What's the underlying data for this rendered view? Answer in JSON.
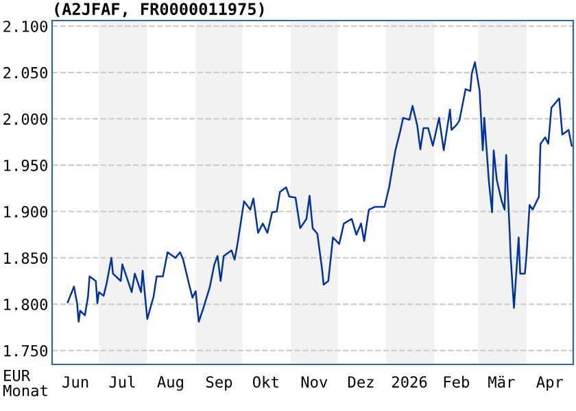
{
  "chart_data": {
    "type": "line",
    "title": "(A2JFAF, FR0000011975)",
    "xlabel": "Monat",
    "ylabel": "EUR",
    "x": [
      "2025-06-11",
      "2025-06-15",
      "2025-06-17",
      "2025-06-18",
      "2025-06-19",
      "2025-06-22",
      "2025-06-24",
      "2025-06-25",
      "2025-06-29",
      "2025-06-30",
      "2025-07-01",
      "2025-07-04",
      "2025-07-06",
      "2025-07-09",
      "2025-07-10",
      "2025-07-15",
      "2025-07-16",
      "2025-07-19",
      "2025-07-22",
      "2025-07-24",
      "2025-07-28",
      "2025-07-29",
      "2025-08-01",
      "2025-08-05",
      "2025-08-07",
      "2025-08-11",
      "2025-08-14",
      "2025-08-19",
      "2025-08-22",
      "2025-08-24",
      "2025-08-28",
      "2025-08-30",
      "2025-09-01",
      "2025-09-03",
      "2025-09-06",
      "2025-09-10",
      "2025-09-13",
      "2025-09-15",
      "2025-09-17",
      "2025-09-19",
      "2025-09-24",
      "2025-09-26",
      "2025-09-28",
      "2025-10-02",
      "2025-10-06",
      "2025-10-08",
      "2025-10-11",
      "2025-10-14",
      "2025-10-17",
      "2025-10-20",
      "2025-10-23",
      "2025-10-25",
      "2025-10-29",
      "2025-10-31",
      "2025-11-04",
      "2025-11-07",
      "2025-11-11",
      "2025-11-13",
      "2025-11-15",
      "2025-11-18",
      "2025-11-21",
      "2025-11-22",
      "2025-11-25",
      "2025-11-28",
      "2025-12-02",
      "2025-12-05",
      "2025-12-10",
      "2025-12-13",
      "2025-12-16",
      "2025-12-18",
      "2025-12-21",
      "2025-12-25",
      "2025-12-31",
      "2026-01-03",
      "2026-01-07",
      "2026-01-10",
      "2026-01-12",
      "2026-01-16",
      "2026-01-18",
      "2026-01-21",
      "2026-01-23",
      "2026-01-25",
      "2026-01-28",
      "2026-01-31",
      "2026-02-04",
      "2026-02-07",
      "2026-02-11",
      "2026-02-12",
      "2026-02-15",
      "2026-02-17",
      "2026-02-21",
      "2026-02-24",
      "2026-02-25",
      "2026-02-27",
      "2026-03-02",
      "2026-03-04",
      "2026-03-05",
      "2026-03-08",
      "2026-03-10",
      "2026-03-11",
      "2026-03-13",
      "2026-03-16",
      "2026-03-18",
      "2026-03-19",
      "2026-03-21",
      "2026-03-22",
      "2026-03-24",
      "2026-03-27",
      "2026-03-28",
      "2026-03-31",
      "2026-04-01",
      "2026-04-03",
      "2026-04-05",
      "2026-04-09",
      "2026-04-10",
      "2026-04-13",
      "2026-04-15",
      "2026-04-17",
      "2026-04-22",
      "2026-04-24",
      "2026-04-28",
      "2026-04-30"
    ],
    "series": [
      {
        "color": "#0033a0",
        "values": [
          1.802,
          1.819,
          1.801,
          1.781,
          1.793,
          1.788,
          1.808,
          1.83,
          1.825,
          1.801,
          1.813,
          1.809,
          1.823,
          1.85,
          1.833,
          1.825,
          1.843,
          1.828,
          1.813,
          1.833,
          1.813,
          1.836,
          1.784,
          1.808,
          1.83,
          1.83,
          1.856,
          1.85,
          1.856,
          1.848,
          1.82,
          1.807,
          1.814,
          1.781,
          1.796,
          1.818,
          1.843,
          1.852,
          1.825,
          1.852,
          1.858,
          1.848,
          1.867,
          1.911,
          1.902,
          1.914,
          1.877,
          1.887,
          1.877,
          1.899,
          1.9,
          1.921,
          1.926,
          1.916,
          1.915,
          1.882,
          1.892,
          1.917,
          1.882,
          1.876,
          1.838,
          1.821,
          1.825,
          1.872,
          1.865,
          1.887,
          1.892,
          1.875,
          1.887,
          1.868,
          1.902,
          1.905,
          1.905,
          1.926,
          1.966,
          1.986,
          2.001,
          1.999,
          2.014,
          1.993,
          1.967,
          1.99,
          1.99,
          1.971,
          2.001,
          1.966,
          2.01,
          1.988,
          1.993,
          1.998,
          2.032,
          2.03,
          2.049,
          2.061,
          2.03,
          1.966,
          2.001,
          1.931,
          1.899,
          1.966,
          1.934,
          1.912,
          1.902,
          1.961,
          1.887,
          1.848,
          1.796,
          1.872,
          1.833,
          1.833,
          1.852,
          1.907,
          1.902,
          1.916,
          1.973,
          1.98,
          1.973,
          2.012,
          2.022,
          1.983,
          1.988,
          1.971
        ]
      }
    ],
    "xlim": [
      "2025-06-01",
      "2026-05-01"
    ],
    "ylim": [
      1.735,
      2.106
    ],
    "xticks": [
      {
        "value": "2025-06-16",
        "label": "Jun"
      },
      {
        "value": "2025-07-16",
        "label": "Jul"
      },
      {
        "value": "2025-08-16",
        "label": "Aug"
      },
      {
        "value": "2025-09-16",
        "label": "Sep"
      },
      {
        "value": "2025-10-16",
        "label": "Okt"
      },
      {
        "value": "2025-11-16",
        "label": "Nov"
      },
      {
        "value": "2025-12-16",
        "label": "Dez"
      },
      {
        "value": "2026-01-16",
        "label": "2026"
      },
      {
        "value": "2026-02-15",
        "label": "Feb"
      },
      {
        "value": "2026-03-16",
        "label": "Mär"
      },
      {
        "value": "2026-04-16",
        "label": "Apr"
      }
    ],
    "yticks": [
      {
        "value": 1.75,
        "label": "1.750"
      },
      {
        "value": 1.8,
        "label": "1.800"
      },
      {
        "value": 1.85,
        "label": "1.850"
      },
      {
        "value": 1.9,
        "label": "1.900"
      },
      {
        "value": 1.95,
        "label": "1.950"
      },
      {
        "value": 2.0,
        "label": "2.000"
      },
      {
        "value": 2.05,
        "label": "2.050"
      },
      {
        "value": 2.1,
        "label": "2.100"
      }
    ],
    "bands": [
      {
        "axis": "x",
        "from": "2025-07-01",
        "to": "2025-08-01",
        "color": "#f2f2f2"
      },
      {
        "axis": "x",
        "from": "2025-09-01",
        "to": "2025-10-01",
        "color": "#f2f2f2"
      },
      {
        "axis": "x",
        "from": "2025-11-01",
        "to": "2025-12-01",
        "color": "#f2f2f2"
      },
      {
        "axis": "x",
        "from": "2026-01-01",
        "to": "2026-02-01",
        "color": "#f2f2f2"
      },
      {
        "axis": "x",
        "from": "2026-03-01",
        "to": "2026-04-01",
        "color": "#f2f2f2"
      }
    ],
    "grid": "y",
    "legend": false
  }
}
